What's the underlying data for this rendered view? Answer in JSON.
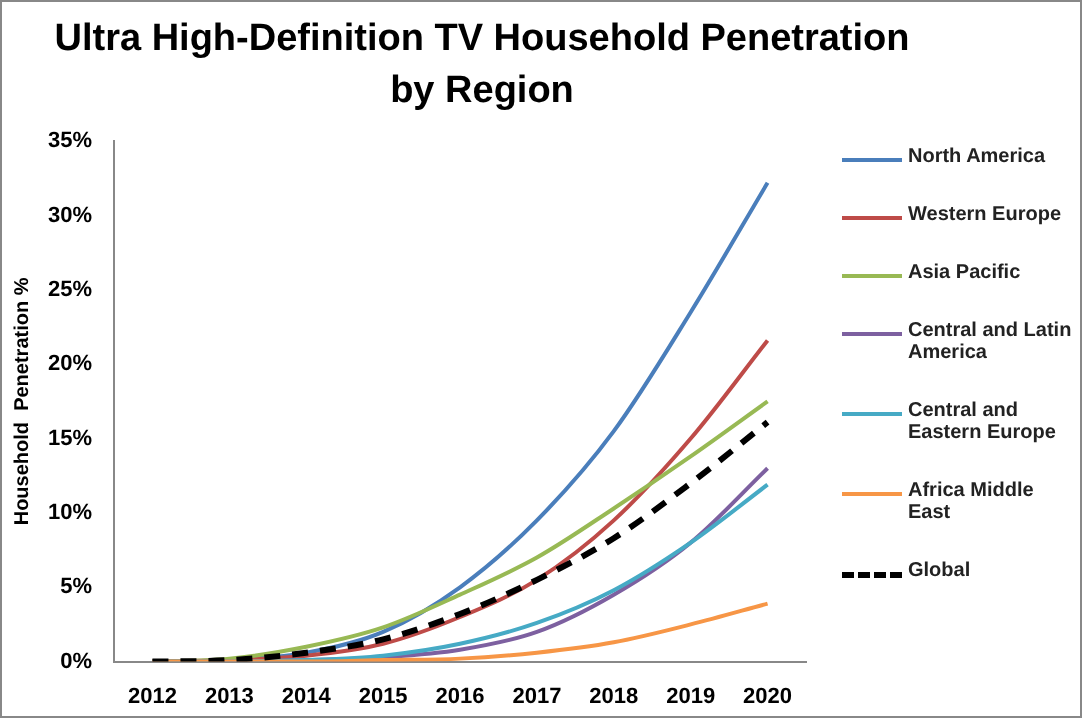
{
  "chart_data": {
    "type": "line",
    "title": "Ultra High-Definition TV Household Penetration by Region",
    "ylabel": "Household  Penetration %",
    "categories": [
      "2012",
      "2013",
      "2014",
      "2015",
      "2016",
      "2017",
      "2018",
      "2019",
      "2020"
    ],
    "series": [
      {
        "name": "North America",
        "color": "#4a7ebb",
        "values": [
          0,
          0.1,
          0.6,
          2.0,
          5.0,
          9.5,
          15.5,
          23.5,
          32.2
        ]
      },
      {
        "name": "Western Europe",
        "color": "#be4b48",
        "values": [
          0,
          0.1,
          0.4,
          1.2,
          3.0,
          5.5,
          9.5,
          15.0,
          21.6
        ]
      },
      {
        "name": "Asia Pacific",
        "color": "#98b954",
        "values": [
          0,
          0.2,
          1.0,
          2.3,
          4.5,
          7.0,
          10.3,
          13.8,
          17.5
        ]
      },
      {
        "name": "Central and Latin America",
        "color": "#7d60a0",
        "values": [
          0,
          0,
          0.1,
          0.3,
          0.8,
          2.0,
          4.5,
          8.0,
          13.0
        ]
      },
      {
        "name": "Central and Eastern Europe",
        "color": "#46aac5",
        "values": [
          0,
          0,
          0.1,
          0.4,
          1.2,
          2.6,
          4.8,
          8.0,
          11.9
        ]
      },
      {
        "name": "Africa Middle East",
        "color": "#f79646",
        "values": [
          0,
          0,
          0,
          0.1,
          0.2,
          0.6,
          1.3,
          2.5,
          3.9
        ]
      },
      {
        "name": "Global",
        "color": "#000000",
        "line_style": "dashed",
        "values": [
          0,
          0.1,
          0.6,
          1.5,
          3.2,
          5.5,
          8.3,
          12.0,
          16.1
        ]
      }
    ],
    "ylim": [
      0,
      35
    ],
    "yticks": [
      {
        "value": 0,
        "label": "0%"
      },
      {
        "value": 5,
        "label": "5%"
      },
      {
        "value": 10,
        "label": "10%"
      },
      {
        "value": 15,
        "label": "15%"
      },
      {
        "value": 20,
        "label": "20%"
      },
      {
        "value": 25,
        "label": "25%"
      },
      {
        "value": 30,
        "label": "30%"
      },
      {
        "value": 35,
        "label": "35%"
      }
    ],
    "grid": false,
    "legend": "right",
    "marker": "none",
    "line_style": "solid"
  }
}
